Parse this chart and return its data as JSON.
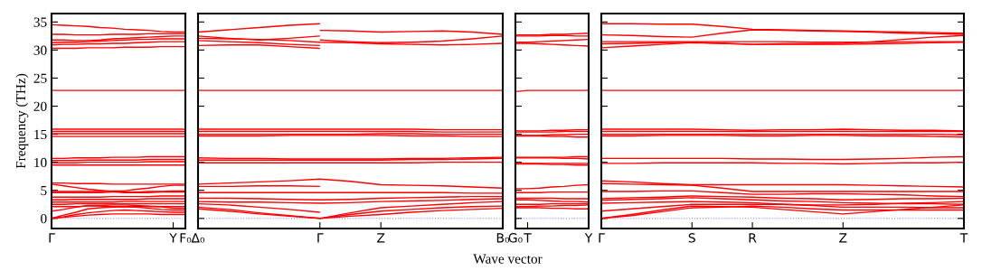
{
  "chart_data": [
    {
      "type": "line",
      "ylabel": "Frequency (THz)",
      "ylim": [
        -1.8,
        36.5
      ],
      "yticks": [
        0,
        5,
        10,
        15,
        20,
        25,
        30,
        35
      ],
      "ref_lines": [
        {
          "axis": "y",
          "value": 0,
          "color": "#8080ff",
          "line_style": "dotted"
        }
      ],
      "categories": [
        "Γ",
        null,
        null,
        null,
        null,
        null,
        null,
        null,
        null,
        null,
        "Y",
        "F₀"
      ],
      "series": [
        {
          "color": "#ff0000",
          "values": [
            34.5,
            34.4,
            34.3,
            34.2,
            34.0,
            33.9,
            33.7,
            33.6,
            33.5,
            33.3,
            33.2,
            33.2
          ]
        },
        {
          "color": "#ff0000",
          "values": [
            32.8,
            32.8,
            32.7,
            32.7,
            32.7,
            32.8,
            32.8,
            32.8,
            32.9,
            32.9,
            32.9,
            32.9
          ]
        },
        {
          "color": "#ff0000",
          "values": [
            31.8,
            31.8,
            31.7,
            31.7,
            31.8,
            32.0,
            32.1,
            32.2,
            32.3,
            32.4,
            32.5,
            32.5
          ]
        },
        {
          "color": "#ff0000",
          "values": [
            31.3,
            31.4,
            31.4,
            31.5,
            31.6,
            31.7,
            31.8,
            31.9,
            31.9,
            32.0,
            32.0,
            32.0
          ]
        },
        {
          "color": "#ff0000",
          "values": [
            30.9,
            31.0,
            31.0,
            31.1,
            31.1,
            31.2,
            31.2,
            31.3,
            31.4,
            31.5,
            31.5,
            31.5
          ]
        },
        {
          "color": "#ff0000",
          "values": [
            30.3,
            30.3,
            30.3,
            30.4,
            30.4,
            30.4,
            30.5,
            30.5,
            30.5,
            30.6,
            30.6,
            30.6
          ]
        },
        {
          "color": "#ff0000",
          "values": [
            22.8,
            22.8,
            22.8,
            22.8,
            22.8,
            22.8,
            22.8,
            22.8,
            22.8,
            22.8,
            22.8,
            22.8
          ]
        },
        {
          "color": "#ff0000",
          "values": [
            15.9,
            15.9,
            15.9,
            15.9,
            15.9,
            15.9,
            15.9,
            15.9,
            15.9,
            15.9,
            15.9,
            15.9
          ]
        },
        {
          "color": "#ff0000",
          "values": [
            15.5,
            15.5,
            15.5,
            15.5,
            15.5,
            15.5,
            15.5,
            15.5,
            15.5,
            15.5,
            15.5,
            15.5
          ]
        },
        {
          "color": "#ff0000",
          "values": [
            15.1,
            15.1,
            15.1,
            15.1,
            15.1,
            15.1,
            15.1,
            15.1,
            15.1,
            15.1,
            15.1,
            15.1
          ]
        },
        {
          "color": "#ff0000",
          "values": [
            14.6,
            14.6,
            14.6,
            14.6,
            14.6,
            14.6,
            14.6,
            14.6,
            14.6,
            14.6,
            14.6,
            14.6
          ]
        },
        {
          "color": "#ff0000",
          "values": [
            10.7,
            10.7,
            10.8,
            10.8,
            10.8,
            10.9,
            10.9,
            10.9,
            11.0,
            11.0,
            11.0,
            11.0
          ]
        },
        {
          "color": "#ff0000",
          "values": [
            10.3,
            10.3,
            10.3,
            10.4,
            10.4,
            10.4,
            10.4,
            10.4,
            10.5,
            10.5,
            10.5,
            10.5
          ]
        },
        {
          "color": "#ff0000",
          "values": [
            9.9,
            9.9,
            9.9,
            10.0,
            10.0,
            10.0,
            10.0,
            10.0,
            10.1,
            10.1,
            10.1,
            10.1
          ]
        },
        {
          "color": "#ff0000",
          "values": [
            9.5,
            9.5,
            9.5,
            9.5,
            9.5,
            9.5,
            9.5,
            9.5,
            9.5,
            9.5,
            9.5,
            9.5
          ]
        },
        {
          "color": "#ff0000",
          "values": [
            6.3,
            6.3,
            6.2,
            6.2,
            6.2,
            6.1,
            6.1,
            6.1,
            6.1,
            6.1,
            6.1,
            6.1
          ]
        },
        {
          "color": "#ff0000",
          "values": [
            6.1,
            5.8,
            5.5,
            5.2,
            5.0,
            4.8,
            4.6,
            4.6,
            4.6,
            4.7,
            4.7,
            4.7
          ]
        },
        {
          "color": "#ff0000",
          "values": [
            4.8,
            4.8,
            4.8,
            4.8,
            4.8,
            4.9,
            4.9,
            5.2,
            5.4,
            5.7,
            5.9,
            5.9
          ]
        },
        {
          "color": "#ff0000",
          "values": [
            4.6,
            4.6,
            4.6,
            4.6,
            4.6,
            4.7,
            4.7,
            4.7,
            4.8,
            4.8,
            4.9,
            4.9
          ]
        },
        {
          "color": "#ff0000",
          "values": [
            3.8,
            3.8,
            3.8,
            3.8,
            3.8,
            3.9,
            3.9,
            3.9,
            3.9,
            4.0,
            4.0,
            4.0
          ]
        },
        {
          "color": "#ff0000",
          "values": [
            3.3,
            3.3,
            3.4,
            3.4,
            3.4,
            3.4,
            3.4,
            3.4,
            3.5,
            3.5,
            3.5,
            3.5
          ]
        },
        {
          "color": "#ff0000",
          "values": [
            2.9,
            2.9,
            2.9,
            2.9,
            2.9,
            2.9,
            3.0,
            3.0,
            3.0,
            3.0,
            3.0,
            3.0
          ]
        },
        {
          "color": "#ff0000",
          "values": [
            2.5,
            2.5,
            2.6,
            2.6,
            2.6,
            2.6,
            2.6,
            2.6,
            2.6,
            2.6,
            2.6,
            2.6
          ]
        },
        {
          "color": "#ff0000",
          "values": [
            2.1,
            2.1,
            2.1,
            2.2,
            2.2,
            2.1,
            2.1,
            2.1,
            2.1,
            2.1,
            2.1,
            2.1
          ]
        },
        {
          "color": "#ff0000",
          "values": [
            1.3,
            1.6,
            2.0,
            2.3,
            2.3,
            2.4,
            2.4,
            2.3,
            2.2,
            2.1,
            1.8,
            1.8
          ]
        },
        {
          "color": "#ff0000",
          "values": [
            0,
            0.6,
            1.1,
            1.7,
            1.9,
            2.0,
            2.1,
            2.0,
            1.8,
            1.6,
            1.5,
            1.5
          ]
        },
        {
          "color": "#ff0000",
          "values": [
            0,
            0.3,
            0.7,
            1.0,
            1.2,
            1.4,
            1.5,
            1.4,
            1.3,
            1.2,
            1.1,
            1.1
          ]
        },
        {
          "color": "#ff0000",
          "values": [
            0,
            0.2,
            0.4,
            0.6,
            0.7,
            0.8,
            0.8,
            0.8,
            0.8,
            0.7,
            0.7,
            0.7
          ]
        }
      ]
    },
    {
      "type": "line",
      "ylim": [
        -1.8,
        36.5
      ],
      "yticks": [
        0,
        5,
        10,
        15,
        20,
        25,
        30,
        35
      ],
      "tick_labels": "x",
      "ref_lines": [
        {
          "axis": "y",
          "value": 0,
          "color": "#8080ff",
          "line_style": "dotted"
        }
      ],
      "xlabel": "Wave vector",
      "categories": [
        "Δ₀",
        null,
        null,
        null,
        "Γ",
        null,
        "Z",
        null,
        null,
        null,
        "B₀"
      ],
      "series": [
        {
          "color": "#ff0000",
          "values": [
            33.2,
            33.6,
            34.0,
            34.4,
            34.7,
            null,
            null,
            null,
            null,
            null,
            null
          ]
        },
        {
          "color": "#ff0000",
          "values": [
            32.5,
            32.1,
            31.8,
            32.1,
            32.5,
            null,
            null,
            null,
            null,
            null,
            null
          ]
        },
        {
          "color": "#ff0000",
          "values": [
            32.1,
            32.0,
            31.9,
            31.7,
            31.4,
            31.3,
            31.1,
            31.0,
            30.9,
            31.0,
            31.2
          ]
        },
        {
          "color": "#ff0000",
          "values": [
            31.7,
            31.5,
            31.3,
            31.0,
            30.8,
            null,
            null,
            null,
            null,
            null,
            null
          ]
        },
        {
          "color": "#ff0000",
          "values": [
            30.8,
            30.9,
            30.9,
            30.6,
            30.3,
            null,
            null,
            null,
            null,
            null,
            null
          ]
        },
        {
          "color": "#ff0000",
          "values": [
            null,
            null,
            null,
            null,
            33.5,
            33.4,
            33.2,
            33.3,
            33.4,
            33.2,
            32.8
          ]
        },
        {
          "color": "#ff0000",
          "values": [
            null,
            null,
            null,
            null,
            31.8,
            31.5,
            31.3,
            31.4,
            31.6,
            32.0,
            32.5
          ]
        },
        {
          "color": "#ff0000",
          "values": [
            22.8,
            22.8,
            22.8,
            22.8,
            22.8,
            22.8,
            22.8,
            22.8,
            22.8,
            22.8,
            22.8
          ]
        },
        {
          "color": "#ff0000",
          "values": [
            15.9,
            15.9,
            15.9,
            15.9,
            15.9,
            15.9,
            15.9,
            15.9,
            15.8,
            15.8,
            15.8
          ]
        },
        {
          "color": "#ff0000",
          "values": [
            15.5,
            15.5,
            15.5,
            15.5,
            15.5,
            15.5,
            15.5,
            15.5,
            15.4,
            15.4,
            15.4
          ]
        },
        {
          "color": "#ff0000",
          "values": [
            15.0,
            15.0,
            15.0,
            15.0,
            15.0,
            15.0,
            15.1,
            15.1,
            15.0,
            15.0,
            15.0
          ]
        },
        {
          "color": "#ff0000",
          "values": [
            14.7,
            14.7,
            14.7,
            14.8,
            14.8,
            14.8,
            14.8,
            14.7,
            14.7,
            14.6,
            14.6
          ]
        },
        {
          "color": "#ff0000",
          "values": [
            10.8,
            10.7,
            10.7,
            10.6,
            10.6,
            10.6,
            10.6,
            10.7,
            10.7,
            10.8,
            10.9
          ]
        },
        {
          "color": "#ff0000",
          "values": [
            10.4,
            10.4,
            10.4,
            10.4,
            10.4,
            10.4,
            10.4,
            10.5,
            10.5,
            10.6,
            10.7
          ]
        },
        {
          "color": "#ff0000",
          "values": [
            9.9,
            9.9,
            9.9,
            9.9,
            9.9,
            9.9,
            9.9,
            9.9,
            10.0,
            10.0,
            10.0
          ]
        },
        {
          "color": "#ff0000",
          "values": [
            6.1,
            6.3,
            6.5,
            6.7,
            7.0,
            6.6,
            6.0,
            5.9,
            5.8,
            5.6,
            5.4
          ]
        },
        {
          "color": "#ff0000",
          "values": [
            5.7,
            5.7,
            5.8,
            5.8,
            5.7,
            null,
            null,
            null,
            null,
            null,
            null
          ]
        },
        {
          "color": "#ff0000",
          "values": [
            4.6,
            4.6,
            4.6,
            4.6,
            4.6,
            4.6,
            4.6,
            4.6,
            4.6,
            4.5,
            4.5
          ]
        },
        {
          "color": "#ff0000",
          "values": [
            3.6,
            3.6,
            3.5,
            3.4,
            3.3,
            3.4,
            3.6,
            3.7,
            3.8,
            3.9,
            3.9
          ]
        },
        {
          "color": "#ff0000",
          "values": [
            3.0,
            2.9,
            2.9,
            2.8,
            2.7,
            2.8,
            3.0,
            3.1,
            3.2,
            3.4,
            3.5
          ]
        },
        {
          "color": "#ff0000",
          "values": [
            2.6,
            2.4,
            2.0,
            1.6,
            1.1,
            null,
            null,
            null,
            null,
            null,
            null
          ]
        },
        {
          "color": "#ff0000",
          "values": [
            2.0,
            1.6,
            1.0,
            0.5,
            0,
            1.0,
            1.9,
            2.2,
            2.5,
            2.8,
            3.0
          ]
        },
        {
          "color": "#ff0000",
          "values": [
            1.7,
            1.3,
            0.8,
            0.4,
            0,
            0.7,
            1.3,
            1.6,
            1.9,
            2.1,
            2.2
          ]
        },
        {
          "color": "#ff0000",
          "values": [
            null,
            null,
            null,
            null,
            0,
            0.4,
            0.7,
            1.1,
            1.4,
            1.6,
            1.8
          ]
        }
      ]
    },
    {
      "type": "line",
      "ylim": [
        -1.8,
        36.5
      ],
      "yticks": [
        0,
        5,
        10,
        15,
        20,
        25,
        30,
        35
      ],
      "tick_labels": "x",
      "ref_lines": [
        {
          "axis": "y",
          "value": 0,
          "color": "#8080ff",
          "line_style": "dotted"
        }
      ],
      "categories": [
        "G₀",
        "T",
        null,
        null,
        null,
        null,
        "Y"
      ],
      "series": [
        {
          "color": "#ff0000",
          "values": [
            32.7,
            32.7,
            32.7,
            32.8,
            32.8,
            32.9,
            33.0
          ]
        },
        {
          "color": "#ff0000",
          "values": [
            32.5,
            32.5,
            32.5,
            32.6,
            32.6,
            32.5,
            32.5
          ]
        },
        {
          "color": "#ff0000",
          "values": [
            31.4,
            31.4,
            31.5,
            31.6,
            31.7,
            31.8,
            31.9
          ]
        },
        {
          "color": "#ff0000",
          "values": [
            31.2,
            31.2,
            31.1,
            31.0,
            30.9,
            30.8,
            30.7
          ]
        },
        {
          "color": "#ff0000",
          "values": [
            22.6,
            22.8,
            22.8,
            22.8,
            22.8,
            22.8,
            22.8
          ]
        },
        {
          "color": "#ff0000",
          "values": [
            15.6,
            15.6,
            15.6,
            15.7,
            15.7,
            15.8,
            15.8
          ]
        },
        {
          "color": "#ff0000",
          "values": [
            15.4,
            15.4,
            15.4,
            15.4,
            15.5,
            15.5,
            15.5
          ]
        },
        {
          "color": "#ff0000",
          "values": [
            14.8,
            14.8,
            14.8,
            14.9,
            14.9,
            15.0,
            15.0
          ]
        },
        {
          "color": "#ff0000",
          "values": [
            14.7,
            14.7,
            14.7,
            14.6,
            14.6,
            14.5,
            14.5
          ]
        },
        {
          "color": "#ff0000",
          "values": [
            10.9,
            10.9,
            10.9,
            10.9,
            10.9,
            11.0,
            11.0
          ]
        },
        {
          "color": "#ff0000",
          "values": [
            10.8,
            10.8,
            10.8,
            10.8,
            10.7,
            10.7,
            10.6
          ]
        },
        {
          "color": "#ff0000",
          "values": [
            9.8,
            9.8,
            9.8,
            9.8,
            9.8,
            9.8,
            9.8
          ]
        },
        {
          "color": "#ff0000",
          "values": [
            9.7,
            9.7,
            9.7,
            9.6,
            9.6,
            9.5,
            9.5
          ]
        },
        {
          "color": "#ff0000",
          "values": [
            5.3,
            5.3,
            5.4,
            5.6,
            5.7,
            5.9,
            6.0
          ]
        },
        {
          "color": "#ff0000",
          "values": [
            4.6,
            4.6,
            4.6,
            4.7,
            4.7,
            4.7,
            4.7
          ]
        },
        {
          "color": "#ff0000",
          "values": [
            3.6,
            3.6,
            3.6,
            3.6,
            3.5,
            3.5,
            3.5
          ]
        },
        {
          "color": "#ff0000",
          "values": [
            3.3,
            3.3,
            3.2,
            3.1,
            3.0,
            3.0,
            2.9
          ]
        },
        {
          "color": "#ff0000",
          "values": [
            2.5,
            2.5,
            2.5,
            2.6,
            2.6,
            2.6,
            2.6
          ]
        },
        {
          "color": "#ff0000",
          "values": [
            2.1,
            2.1,
            2.2,
            2.2,
            2.3,
            2.3,
            2.4
          ]
        },
        {
          "color": "#ff0000",
          "values": [
            1.9,
            1.9,
            1.9,
            1.8,
            1.8,
            1.7,
            1.7
          ]
        }
      ]
    },
    {
      "type": "line",
      "ylim": [
        -1.8,
        36.5
      ],
      "yticks": [
        0,
        5,
        10,
        15,
        20,
        25,
        30,
        35
      ],
      "tick_labels": "x",
      "ref_lines": [
        {
          "axis": "y",
          "value": 0,
          "color": "#8080ff",
          "line_style": "dotted"
        }
      ],
      "categories": [
        "Γ",
        null,
        null,
        "S",
        null,
        "R",
        null,
        null,
        "Z",
        null,
        null,
        null,
        "T"
      ],
      "series": [
        {
          "color": "#ff0000",
          "values": [
            34.7,
            34.7,
            34.6,
            34.6,
            34.2,
            33.7,
            33.6,
            33.5,
            33.4,
            33.3,
            33.2,
            33.1,
            33.0
          ]
        },
        {
          "color": "#ff0000",
          "values": [
            32.7,
            32.6,
            32.4,
            32.3,
            33.0,
            33.6,
            33.5,
            33.4,
            33.3,
            33.2,
            33.0,
            32.9,
            32.8
          ]
        },
        {
          "color": "#ff0000",
          "values": [
            31.5,
            31.5,
            31.5,
            31.5,
            31.5,
            31.5,
            31.5,
            31.4,
            31.4,
            31.4,
            31.5,
            31.5,
            31.5
          ]
        },
        {
          "color": "#ff0000",
          "values": [
            31.1,
            31.2,
            31.3,
            31.4,
            31.2,
            31.0,
            31.1,
            31.1,
            31.2,
            31.5,
            31.9,
            32.3,
            32.6
          ]
        },
        {
          "color": "#ff0000",
          "values": [
            30.4,
            30.7,
            31.0,
            31.3,
            31.2,
            31.0,
            31.0,
            31.0,
            31.0,
            31.1,
            31.2,
            31.3,
            31.4
          ]
        },
        {
          "color": "#ff0000",
          "values": [
            22.8,
            22.8,
            22.8,
            22.8,
            22.8,
            22.8,
            22.8,
            22.8,
            22.8,
            22.8,
            22.8,
            22.8,
            22.8
          ]
        },
        {
          "color": "#ff0000",
          "values": [
            15.9,
            15.9,
            15.9,
            15.9,
            15.8,
            15.7,
            15.8,
            15.8,
            15.9,
            15.8,
            15.7,
            15.7,
            15.6
          ]
        },
        {
          "color": "#ff0000",
          "values": [
            15.5,
            15.5,
            15.5,
            15.5,
            15.5,
            15.5,
            15.5,
            15.5,
            15.5,
            15.5,
            15.5,
            15.5,
            15.5
          ]
        },
        {
          "color": "#ff0000",
          "values": [
            15.0,
            15.0,
            15.0,
            15.0,
            15.0,
            15.0,
            15.0,
            15.0,
            15.0,
            15.0,
            15.0,
            15.0,
            14.9
          ]
        },
        {
          "color": "#ff0000",
          "values": [
            14.7,
            14.7,
            14.8,
            14.8,
            14.8,
            14.7,
            14.7,
            14.8,
            14.8,
            14.7,
            14.7,
            14.6,
            14.5
          ]
        },
        {
          "color": "#ff0000",
          "values": [
            10.7,
            10.7,
            10.7,
            10.7,
            10.7,
            10.6,
            10.6,
            10.5,
            10.5,
            10.6,
            10.7,
            10.9,
            11.0
          ]
        },
        {
          "color": "#ff0000",
          "values": [
            9.8,
            9.8,
            9.9,
            9.9,
            9.9,
            9.9,
            9.8,
            9.8,
            9.7,
            9.8,
            9.9,
            9.9,
            10.0
          ]
        },
        {
          "color": "#ff0000",
          "values": [
            6.7,
            6.5,
            6.2,
            6.0,
            6.0,
            6.0,
            6.0,
            6.0,
            6.0,
            5.9,
            5.8,
            5.7,
            5.6
          ]
        },
        {
          "color": "#ff0000",
          "values": [
            6.2,
            6.1,
            6.0,
            5.9,
            5.4,
            4.8,
            4.8,
            4.8,
            4.8,
            4.8,
            4.8,
            4.8,
            4.8
          ]
        },
        {
          "color": "#ff0000",
          "values": [
            4.8,
            4.8,
            4.9,
            4.9,
            4.6,
            4.3,
            4.3,
            4.4,
            4.4,
            4.3,
            4.2,
            4.0,
            3.9
          ]
        },
        {
          "color": "#ff0000",
          "values": [
            3.5,
            3.7,
            3.8,
            4.0,
            3.9,
            3.8,
            3.6,
            3.5,
            3.3,
            3.4,
            3.5,
            3.5,
            3.6
          ]
        },
        {
          "color": "#ff0000",
          "values": [
            3.2,
            3.4,
            3.5,
            3.7,
            3.5,
            3.3,
            3.1,
            3.0,
            2.8,
            2.7,
            2.6,
            2.6,
            2.5
          ]
        },
        {
          "color": "#ff0000",
          "values": [
            2.7,
            2.8,
            2.9,
            3.0,
            2.9,
            2.8,
            2.5,
            2.3,
            2.0,
            2.0,
            2.0,
            1.9,
            1.9
          ]
        },
        {
          "color": "#ff0000",
          "values": [
            1.3,
            1.7,
            2.1,
            2.5,
            2.5,
            2.5,
            2.5,
            2.4,
            2.4,
            2.5,
            2.7,
            2.8,
            3.0
          ]
        },
        {
          "color": "#ff0000",
          "values": [
            0,
            0.7,
            1.5,
            2.2,
            2.1,
            2.0,
            1.6,
            1.2,
            0.8,
            1.2,
            1.6,
            2.0,
            2.4
          ]
        },
        {
          "color": "#ff0000",
          "values": [
            0,
            0.5,
            1.2,
            1.9,
            2.0,
            2.2,
            2.0,
            1.7,
            1.5,
            1.5,
            1.5,
            1.5,
            1.5
          ]
        }
      ]
    }
  ]
}
